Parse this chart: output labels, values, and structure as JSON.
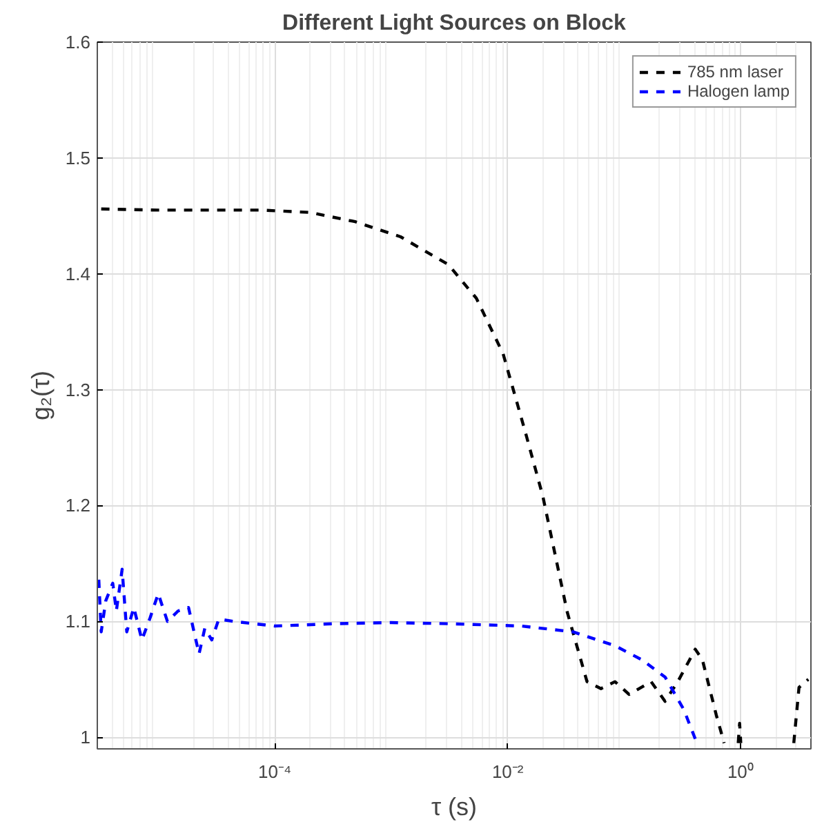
{
  "chart_data": {
    "type": "line",
    "title": "Different Light Sources on Block",
    "xlabel": "τ (s)",
    "ylabel": "g₂(τ)",
    "log": "x",
    "grid": true,
    "legend": "top right",
    "line_style": "dashed",
    "marker": "none",
    "xlim": [
      3e-06,
      4
    ],
    "xticks": [
      {
        "value": 0.0001,
        "label": "10⁻⁴"
      },
      {
        "value": 0.01,
        "label": "10⁻²"
      },
      {
        "value": 1,
        "label": "10⁰"
      }
    ],
    "ylim": [
      0.99,
      1.6
    ],
    "yticks": [
      1,
      1.1,
      1.2,
      1.3,
      1.4,
      1.5,
      1.6
    ],
    "series": [
      {
        "name": "785 nm laser",
        "color": "#000000",
        "x": [
          3.24e-06,
          1e-05,
          3.16e-05,
          7.76e-05,
          0.0002,
          0.00049,
          0.0012,
          0.00309,
          0.00537,
          0.00912,
          0.0141,
          0.02,
          0.0324,
          0.0479,
          0.0631,
          0.0832,
          0.11,
          0.17,
          0.224,
          0.288,
          0.407,
          0.468,
          0.617,
          0.72,
          0.85,
          0.95,
          0.977,
          1.0,
          1.5,
          2.85,
          3.16,
          3.8
        ],
        "values": [
          1.456,
          1.455,
          1.455,
          1.455,
          1.453,
          1.445,
          1.432,
          1.408,
          1.379,
          1.331,
          1.264,
          1.208,
          1.108,
          1.048,
          1.042,
          1.048,
          1.037,
          1.048,
          1.031,
          1.048,
          1.076,
          1.067,
          1.019,
          0.995,
          null,
          0.995,
          1.012,
          0.995,
          null,
          0.995,
          1.043,
          1.05
        ]
      },
      {
        "name": "Halogen lamp",
        "color": "#0000ff",
        "x": [
          3.09e-06,
          3.24e-06,
          3.55e-06,
          4.07e-06,
          4.37e-06,
          4.9e-06,
          5.37e-06,
          6.17e-06,
          7.24e-06,
          8.51e-06,
          1e-05,
          1.2e-05,
          1.48e-05,
          1.82e-05,
          2.24e-05,
          2.51e-05,
          2.88e-05,
          3.31e-05,
          4.47e-05,
          0.0001,
          0.000316,
          0.001,
          0.00316,
          0.0132,
          0.0363,
          0.0832,
          0.141,
          0.224,
          0.324,
          0.42
        ],
        "values": [
          1.136,
          1.091,
          1.118,
          1.133,
          1.109,
          1.145,
          1.091,
          1.112,
          1.084,
          1.103,
          1.124,
          1.1,
          1.109,
          1.112,
          1.072,
          1.094,
          1.084,
          1.102,
          1.1,
          1.096,
          1.098,
          1.099,
          1.098,
          1.096,
          1.091,
          1.079,
          1.067,
          1.052,
          1.024,
          0.995
        ]
      }
    ]
  }
}
